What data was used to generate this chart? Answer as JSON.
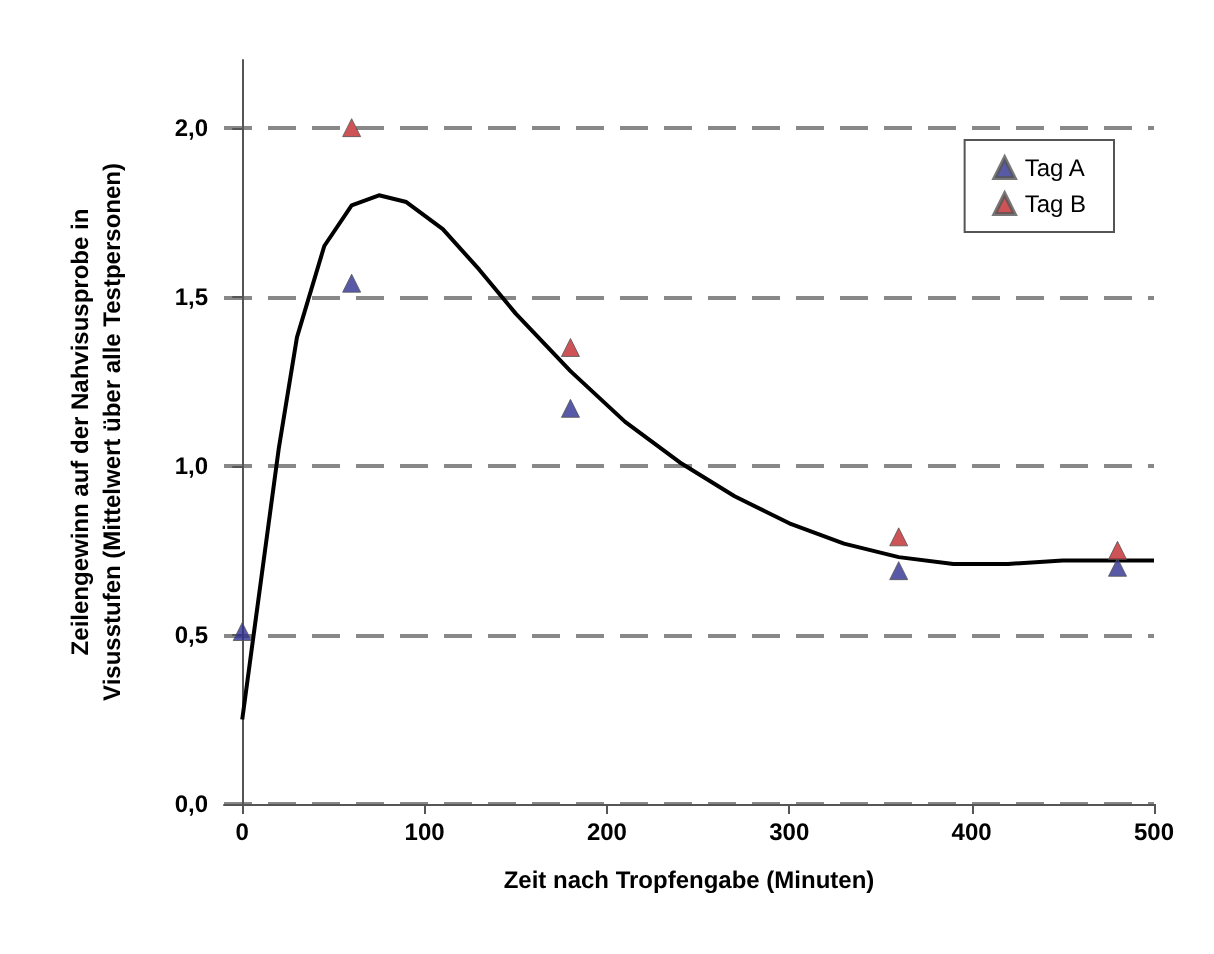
{
  "chart_data": {
    "type": "scatter",
    "xlabel": "Zeit nach Tropfengabe (Minuten)",
    "ylabel": "Zeilengewinn auf der Nahvisusprobe in\nVisusstufen (Mittelwert über alle Testpersonen)",
    "xlim": [
      -10,
      500
    ],
    "xticks": [
      0,
      100,
      200,
      300,
      400,
      500
    ],
    "ylim": [
      0,
      2.2
    ],
    "yticks": [
      {
        "value": 0,
        "label": "0,0"
      },
      {
        "value": 0.5,
        "label": "0,5"
      },
      {
        "value": 1,
        "label": "1,0"
      },
      {
        "value": 1.5,
        "label": "1,5"
      },
      {
        "value": 2,
        "label": "2,0"
      }
    ],
    "grid": "y",
    "legend": "top right",
    "series": [
      {
        "name": "Tag A",
        "color": "#2e3192",
        "marker": "triangle",
        "x": [
          0,
          60,
          180,
          360,
          480
        ],
        "values": [
          0.51,
          1.54,
          1.17,
          0.69,
          0.7
        ]
      },
      {
        "name": "Tag B",
        "color": "#c0282d",
        "marker": "triangle",
        "x": [
          60,
          180,
          360,
          480
        ],
        "values": [
          2.0,
          1.35,
          0.79,
          0.75
        ]
      },
      {
        "type": "line",
        "color": "#000000",
        "marker": "none",
        "x": [
          0,
          10,
          20,
          30,
          45,
          60,
          75,
          90,
          110,
          130,
          150,
          180,
          210,
          240,
          270,
          300,
          330,
          360,
          390,
          420,
          450,
          480,
          500
        ],
        "values": [
          0.25,
          0.65,
          1.05,
          1.38,
          1.65,
          1.77,
          1.8,
          1.78,
          1.7,
          1.58,
          1.45,
          1.28,
          1.13,
          1.01,
          0.91,
          0.83,
          0.77,
          0.73,
          0.71,
          0.71,
          0.72,
          0.72,
          0.72
        ]
      }
    ]
  }
}
